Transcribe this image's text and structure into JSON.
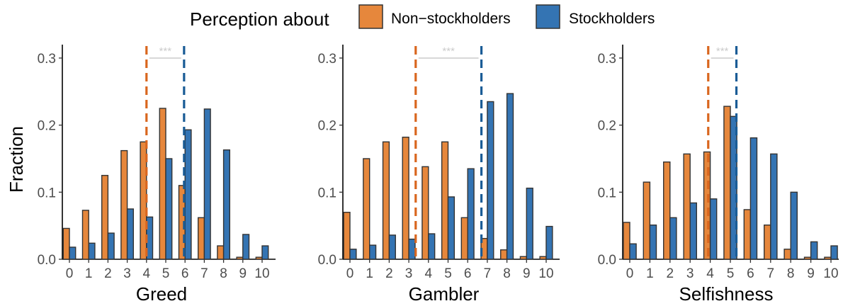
{
  "legend": {
    "title": "Perception about",
    "items": [
      {
        "label": "Non−stockholders",
        "color": "#E6873C"
      },
      {
        "label": "Stockholders",
        "color": "#3474B3"
      }
    ]
  },
  "ylabel": "Fraction",
  "significance_label": "***",
  "colors": {
    "non_stockholders": "#E6873C",
    "stockholders": "#3474B3",
    "non_stockholders_line": "#D9661E",
    "stockholders_line": "#1A5C96",
    "bar_outline": "#333333",
    "significance": "#cccccc"
  },
  "chart_data": [
    {
      "type": "bar",
      "xlabel": "Greed",
      "ylabel": "Fraction",
      "categories": [
        "0",
        "1",
        "2",
        "3",
        "4",
        "5",
        "6",
        "7",
        "8",
        "9",
        "10"
      ],
      "ylim": [
        0,
        0.32
      ],
      "yticks": [
        "0.0",
        "0.1",
        "0.2",
        "0.3"
      ],
      "series": [
        {
          "name": "Non−stockholders",
          "values": [
            0.046,
            0.073,
            0.125,
            0.162,
            0.175,
            0.225,
            0.11,
            0.062,
            0.02,
            0.003,
            0.003
          ]
        },
        {
          "name": "Stockholders",
          "values": [
            0.018,
            0.024,
            0.039,
            0.075,
            0.063,
            0.15,
            0.193,
            0.224,
            0.163,
            0.037,
            0.02
          ]
        }
      ],
      "mean_lines": {
        "non_stockholders": 4.0,
        "stockholders": 5.95
      },
      "significance": {
        "label": "***",
        "y": 0.3
      }
    },
    {
      "type": "bar",
      "xlabel": "Gambler",
      "ylabel": "Fraction",
      "categories": [
        "0",
        "1",
        "2",
        "3",
        "4",
        "5",
        "6",
        "7",
        "8",
        "9",
        "10"
      ],
      "ylim": [
        0,
        0.32
      ],
      "yticks": [
        "0.0",
        "0.1",
        "0.2",
        "0.3"
      ],
      "series": [
        {
          "name": "Non−stockholders",
          "values": [
            0.07,
            0.15,
            0.175,
            0.182,
            0.138,
            0.175,
            0.062,
            0.031,
            0.014,
            0.004,
            0.004
          ]
        },
        {
          "name": "Stockholders",
          "values": [
            0.015,
            0.021,
            0.036,
            0.03,
            0.038,
            0.093,
            0.135,
            0.235,
            0.247,
            0.106,
            0.049
          ]
        }
      ],
      "mean_lines": {
        "non_stockholders": 3.35,
        "stockholders": 6.7
      },
      "significance": {
        "label": "***",
        "y": 0.3
      }
    },
    {
      "type": "bar",
      "xlabel": "Selfishness",
      "ylabel": "Fraction",
      "categories": [
        "0",
        "1",
        "2",
        "3",
        "4",
        "5",
        "6",
        "7",
        "8",
        "9",
        "10"
      ],
      "ylim": [
        0,
        0.32
      ],
      "yticks": [
        "0.0",
        "0.1",
        "0.2",
        "0.3"
      ],
      "series": [
        {
          "name": "Non−stockholders",
          "values": [
            0.055,
            0.115,
            0.145,
            0.157,
            0.16,
            0.228,
            0.074,
            0.051,
            0.015,
            0.003,
            0.003
          ]
        },
        {
          "name": "Stockholders",
          "values": [
            0.023,
            0.051,
            0.062,
            0.084,
            0.09,
            0.213,
            0.181,
            0.157,
            0.1,
            0.026,
            0.02
          ]
        }
      ],
      "mean_lines": {
        "non_stockholders": 3.9,
        "stockholders": 5.3
      },
      "significance": {
        "label": "***",
        "y": 0.3
      }
    }
  ]
}
